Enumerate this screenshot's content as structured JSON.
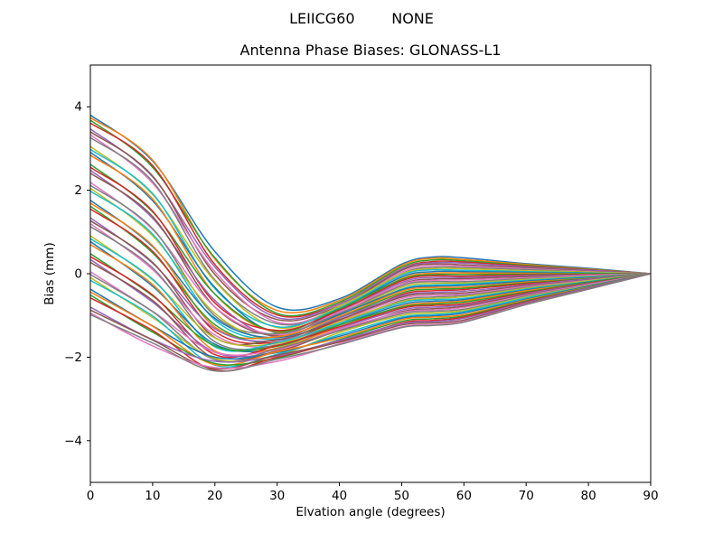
{
  "figure": {
    "background": "#ffffff",
    "suptitle": "LEIICG60        NONE"
  },
  "chart_data": {
    "type": "line",
    "suptitle": "LEIICG60        NONE",
    "title": "Antenna Phase Biases: GLONASS-L1",
    "xlabel": "Elvation angle (degrees)",
    "ylabel": "Bias (mm)",
    "xlim": [
      0,
      90
    ],
    "ylim": [
      -5,
      5
    ],
    "xticks": [
      0,
      10,
      20,
      30,
      40,
      50,
      60,
      70,
      80,
      90
    ],
    "yticks": [
      -4,
      -2,
      0,
      2,
      4
    ],
    "grid": false,
    "legend": "none",
    "line_width": 1.5,
    "axis_color": "#000000",
    "palette": [
      "#1f77b4",
      "#ff7f0e",
      "#2ca02c",
      "#d62728",
      "#9467bd",
      "#8c564b",
      "#e377c2",
      "#7f7f7f",
      "#bcbd22",
      "#17becf"
    ],
    "x": [
      0,
      10,
      20,
      30,
      40,
      50,
      55,
      60,
      70,
      80,
      90
    ],
    "series": [
      {
        "values": [
          3.8,
          2.7,
          0.53,
          -0.8,
          -0.6,
          0.23,
          0.4,
          0.38,
          0.24,
          0.13,
          0.0
        ]
      },
      {
        "values": [
          3.74,
          2.72,
          0.35,
          -0.88,
          -0.64,
          0.2,
          0.37,
          0.34,
          0.22,
          0.11,
          0.0
        ]
      },
      {
        "values": [
          3.68,
          2.55,
          0.38,
          -0.95,
          -0.68,
          0.16,
          0.33,
          0.31,
          0.2,
          0.1,
          0.0
        ]
      },
      {
        "values": [
          3.61,
          2.59,
          0.22,
          -0.99,
          -0.72,
          0.12,
          0.29,
          0.28,
          0.18,
          0.09,
          0.0
        ]
      },
      {
        "values": [
          3.47,
          2.32,
          0.16,
          -1.05,
          -0.73,
          0.11,
          0.26,
          0.25,
          0.16,
          0.08,
          0.0
        ]
      },
      {
        "values": [
          3.4,
          2.34,
          -0.02,
          -1.1,
          -0.77,
          0.08,
          0.23,
          0.21,
          0.14,
          0.06,
          0.0
        ]
      },
      {
        "values": [
          3.33,
          2.17,
          0.05,
          -1.16,
          -0.81,
          0.04,
          0.19,
          0.18,
          0.12,
          0.05,
          0.0
        ]
      },
      {
        "values": [
          3.26,
          2.21,
          -0.15,
          -1.2,
          -0.86,
          0.0,
          0.15,
          0.15,
          0.1,
          0.04,
          0.0
        ]
      },
      {
        "values": [
          3.05,
          1.9,
          -0.18,
          -1.29,
          -0.78,
          -0.01,
          0.12,
          0.12,
          0.07,
          0.04,
          0.0
        ]
      },
      {
        "values": [
          2.98,
          1.92,
          -0.36,
          -1.27,
          -0.82,
          -0.04,
          0.09,
          0.08,
          0.05,
          0.02,
          0.0
        ]
      },
      {
        "values": [
          2.91,
          1.75,
          -0.33,
          -1.42,
          -0.86,
          -0.08,
          0.05,
          0.05,
          0.03,
          0.01,
          0.0
        ]
      },
      {
        "values": [
          2.84,
          1.79,
          -0.49,
          -1.4,
          -0.91,
          -0.12,
          0.01,
          0.02,
          0.01,
          0.0,
          0.0
        ]
      },
      {
        "values": [
          2.62,
          1.48,
          -0.49,
          -1.38,
          -0.84,
          -0.14,
          -0.02,
          -0.02,
          -0.01,
          0.0,
          0.0
        ]
      },
      {
        "values": [
          2.55,
          1.5,
          -0.7,
          -1.36,
          -0.88,
          -0.17,
          -0.05,
          -0.06,
          -0.03,
          -0.02,
          0.0
        ]
      },
      {
        "values": [
          2.48,
          1.33,
          -0.64,
          -1.51,
          -0.92,
          -0.21,
          -0.09,
          -0.09,
          -0.05,
          -0.03,
          0.0
        ]
      },
      {
        "values": [
          2.41,
          1.37,
          -0.8,
          -1.49,
          -0.97,
          -0.25,
          -0.13,
          -0.12,
          -0.07,
          -0.04,
          0.0
        ]
      },
      {
        "values": [
          2.19,
          1.06,
          -0.8,
          -1.46,
          -0.91,
          -0.26,
          -0.16,
          -0.15,
          -0.1,
          -0.04,
          0.0
        ]
      },
      {
        "values": [
          2.12,
          1.08,
          -1.01,
          -1.44,
          -0.95,
          -0.29,
          -0.19,
          -0.19,
          -0.12,
          -0.06,
          0.0
        ]
      },
      {
        "values": [
          2.05,
          0.91,
          -0.95,
          -1.59,
          -0.99,
          -0.33,
          -0.23,
          -0.22,
          -0.14,
          -0.07,
          0.0
        ]
      },
      {
        "values": [
          1.98,
          0.95,
          -1.11,
          -1.57,
          -1.04,
          -0.37,
          -0.27,
          -0.25,
          -0.16,
          -0.08,
          0.0
        ]
      },
      {
        "values": [
          1.76,
          0.65,
          -1.07,
          -1.53,
          -0.98,
          -0.39,
          -0.3,
          -0.28,
          -0.18,
          -0.09,
          0.0
        ]
      },
      {
        "values": [
          1.69,
          0.67,
          -1.28,
          -1.51,
          -1.02,
          -0.42,
          -0.33,
          -0.32,
          -0.2,
          -0.11,
          0.0
        ]
      },
      {
        "values": [
          1.62,
          0.5,
          -1.22,
          -1.66,
          -1.06,
          -0.46,
          -0.37,
          -0.35,
          -0.22,
          -0.12,
          0.0
        ]
      },
      {
        "values": [
          1.55,
          0.54,
          -1.38,
          -1.64,
          -1.11,
          -0.5,
          -0.41,
          -0.38,
          -0.24,
          -0.13,
          0.0
        ]
      },
      {
        "values": [
          1.34,
          0.25,
          -1.32,
          -1.6,
          -1.06,
          -0.53,
          -0.45,
          -0.42,
          -0.27,
          -0.13,
          0.0
        ]
      },
      {
        "values": [
          1.27,
          0.27,
          -1.53,
          -1.58,
          -1.1,
          -0.56,
          -0.48,
          -0.46,
          -0.29,
          -0.15,
          0.0
        ]
      },
      {
        "values": [
          1.2,
          0.1,
          -1.47,
          -1.73,
          -1.14,
          -0.6,
          -0.52,
          -0.49,
          -0.31,
          -0.16,
          0.0
        ]
      },
      {
        "values": [
          1.13,
          0.14,
          -1.63,
          -1.71,
          -1.19,
          -0.64,
          -0.56,
          -0.52,
          -0.33,
          -0.17,
          0.0
        ]
      },
      {
        "values": [
          0.91,
          -0.15,
          -1.54,
          -1.67,
          -1.15,
          -0.67,
          -0.59,
          -0.55,
          -0.35,
          -0.17,
          0.0
        ]
      },
      {
        "values": [
          0.84,
          -0.13,
          -1.75,
          -1.65,
          -1.19,
          -0.7,
          -0.62,
          -0.59,
          -0.37,
          -0.19,
          0.0
        ]
      },
      {
        "values": [
          0.77,
          -0.3,
          -1.69,
          -1.8,
          -1.23,
          -0.74,
          -0.66,
          -0.62,
          -0.39,
          -0.2,
          0.0
        ]
      },
      {
        "values": [
          0.7,
          -0.26,
          -1.85,
          -1.78,
          -1.28,
          -0.78,
          -0.7,
          -0.65,
          -0.41,
          -0.21,
          0.0
        ]
      },
      {
        "values": [
          0.48,
          -0.53,
          -1.73,
          -1.74,
          -1.23,
          -0.8,
          -0.73,
          -0.68,
          -0.44,
          -0.21,
          0.0
        ]
      },
      {
        "values": [
          0.41,
          -0.51,
          -1.94,
          -1.72,
          -1.27,
          -0.83,
          -0.76,
          -0.72,
          -0.46,
          -0.23,
          0.0
        ]
      },
      {
        "values": [
          0.34,
          -0.68,
          -1.88,
          -1.87,
          -1.31,
          -0.87,
          -0.8,
          -0.75,
          -0.48,
          -0.24,
          0.0
        ]
      },
      {
        "values": [
          0.27,
          -0.64,
          -2.04,
          -1.85,
          -1.36,
          -0.91,
          -0.84,
          -0.78,
          -0.5,
          -0.25,
          0.0
        ]
      },
      {
        "values": [
          0.05,
          -0.9,
          -1.88,
          -1.82,
          -1.33,
          -0.93,
          -0.87,
          -0.81,
          -0.52,
          -0.26,
          0.0
        ]
      },
      {
        "values": [
          -0.02,
          -0.91,
          -2.06,
          -1.8,
          -1.37,
          -0.96,
          -0.9,
          -0.85,
          -0.54,
          -0.28,
          0.0
        ]
      },
      {
        "values": [
          -0.09,
          -1.05,
          -2.03,
          -1.95,
          -1.41,
          -1.0,
          -0.94,
          -0.88,
          -0.56,
          -0.29,
          0.0
        ]
      },
      {
        "values": [
          -0.16,
          -1.01,
          -2.19,
          -1.93,
          -1.46,
          -1.04,
          -0.98,
          -0.91,
          -0.58,
          -0.3,
          0.0
        ]
      },
      {
        "values": [
          -0.37,
          -1.25,
          -2.0,
          -1.89,
          -1.5,
          -1.07,
          -1.01,
          -0.94,
          -0.61,
          -0.3,
          0.0
        ]
      },
      {
        "values": [
          -0.44,
          -1.26,
          -2.18,
          -1.87,
          -1.54,
          -1.1,
          -1.04,
          -0.98,
          -0.63,
          -0.32,
          0.0
        ]
      },
      {
        "values": [
          -0.51,
          -1.4,
          -2.15,
          -2.02,
          -1.58,
          -1.14,
          -1.08,
          -1.01,
          -0.65,
          -0.33,
          0.0
        ]
      },
      {
        "values": [
          -0.58,
          -1.36,
          -2.31,
          -2.0,
          -1.63,
          -1.18,
          -1.12,
          -1.04,
          -0.67,
          -0.34,
          0.0
        ]
      },
      {
        "values": [
          -0.8,
          -1.58,
          -2.1,
          -1.97,
          -1.6,
          -1.2,
          -1.15,
          -1.07,
          -0.69,
          -0.34,
          0.0
        ]
      },
      {
        "values": [
          -0.87,
          -1.59,
          -2.28,
          -1.95,
          -1.64,
          -1.23,
          -1.18,
          -1.11,
          -0.71,
          -0.36,
          0.0
        ]
      },
      {
        "values": [
          -0.94,
          -1.73,
          -2.25,
          -2.1,
          -1.68,
          -1.27,
          -1.22,
          -1.14,
          -0.73,
          -0.37,
          0.0
        ]
      },
      {
        "values": [
          -0.98,
          -1.66,
          -2.33,
          -2.05,
          -1.7,
          -1.29,
          -1.24,
          -1.16,
          -0.74,
          -0.37,
          0.0
        ]
      }
    ]
  }
}
